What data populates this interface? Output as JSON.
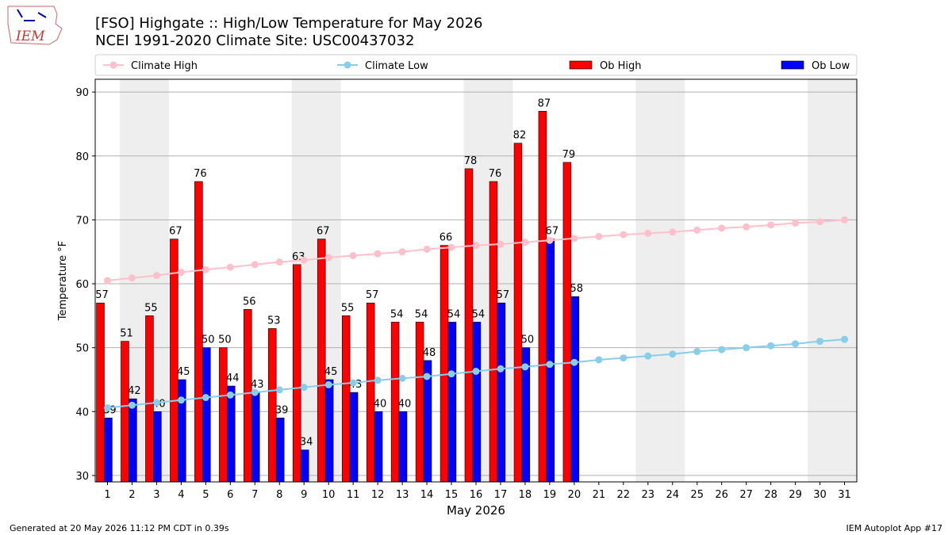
{
  "logo_text": "IEM",
  "footer_left": "Generated at 20 May 2026 11:12 PM CDT in 0.39s",
  "footer_right": "IEM Autoplot App #17",
  "chart_data": {
    "type": "bar",
    "title": "[FSO] Highgate :: High/Low Temperature for May 2026",
    "subtitle": "NCEI 1991-2020 Climate Site: USC00437032",
    "x_label": "May 2026",
    "y_label": "Temperature °F",
    "x": [
      1,
      2,
      3,
      4,
      5,
      6,
      7,
      8,
      9,
      10,
      11,
      12,
      13,
      14,
      15,
      16,
      17,
      18,
      19,
      20,
      21,
      22,
      23,
      24,
      25,
      26,
      27,
      28,
      29,
      30,
      31
    ],
    "xlim": [
      0.5,
      31.5
    ],
    "xticks": [
      1,
      2,
      3,
      4,
      5,
      6,
      7,
      8,
      9,
      10,
      11,
      12,
      13,
      14,
      15,
      16,
      17,
      18,
      19,
      20,
      21,
      22,
      23,
      24,
      25,
      26,
      27,
      28,
      29,
      30,
      31
    ],
    "ylim": [
      29,
      92
    ],
    "yticks": [
      30,
      40,
      50,
      60,
      70,
      80,
      90
    ],
    "grid": true,
    "shaded_days": [
      [
        2,
        3
      ],
      [
        9,
        10
      ],
      [
        16,
        17
      ],
      [
        23,
        24
      ],
      [
        30,
        31
      ]
    ],
    "series": [
      {
        "name": "Climate High",
        "type": "line",
        "color": "#ffc0cb",
        "values": [
          60.5,
          60.9,
          61.3,
          61.8,
          62.2,
          62.6,
          63.0,
          63.4,
          63.7,
          64.1,
          64.4,
          64.7,
          65.0,
          65.4,
          65.7,
          66.0,
          66.2,
          66.5,
          66.8,
          67.1,
          67.4,
          67.7,
          67.9,
          68.1,
          68.4,
          68.7,
          68.9,
          69.2,
          69.5,
          69.7,
          70.0
        ]
      },
      {
        "name": "Climate Low",
        "type": "line",
        "color": "#87ceeb",
        "values": [
          40.6,
          41.0,
          41.4,
          41.8,
          42.2,
          42.6,
          43.0,
          43.4,
          43.8,
          44.2,
          44.5,
          44.9,
          45.2,
          45.5,
          45.9,
          46.3,
          46.7,
          47.0,
          47.4,
          47.7,
          48.1,
          48.4,
          48.7,
          49.0,
          49.4,
          49.7,
          50.0,
          50.3,
          50.6,
          51.0,
          51.3
        ]
      },
      {
        "name": "Ob High",
        "type": "bar",
        "color": "#ff0000",
        "values": [
          57,
          51,
          55,
          67,
          76,
          50,
          56,
          53,
          63,
          67,
          55,
          57,
          54,
          54,
          66,
          78,
          76,
          82,
          87,
          79,
          null,
          null,
          null,
          null,
          null,
          null,
          null,
          null,
          null,
          null,
          null
        ]
      },
      {
        "name": "Ob Low",
        "type": "bar",
        "color": "#0000ff",
        "values": [
          39,
          42,
          40,
          45,
          50,
          44,
          43,
          39,
          34,
          45,
          43,
          40,
          40,
          48,
          54,
          54,
          57,
          50,
          67,
          58,
          null,
          null,
          null,
          null,
          null,
          null,
          null,
          null,
          null,
          null,
          null
        ]
      }
    ]
  }
}
